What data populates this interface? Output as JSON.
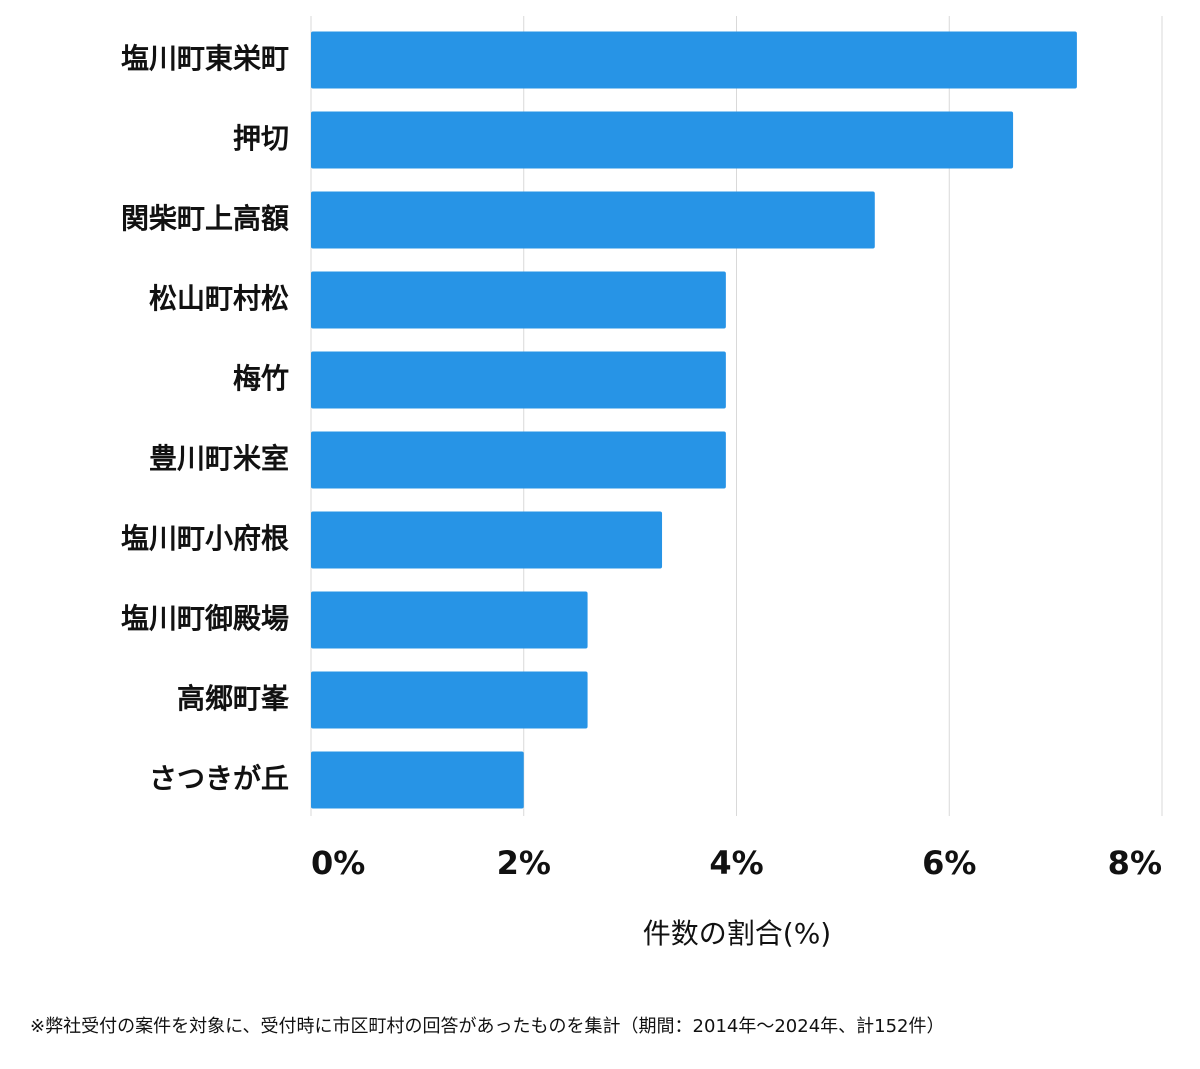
{
  "chart_data": {
    "type": "bar",
    "orientation": "horizontal",
    "categories": [
      "塩川町東栄町",
      "押切",
      "関柴町上高額",
      "松山町村松",
      "梅竹",
      "豊川町米室",
      "塩川町小府根",
      "塩川町御殿場",
      "高郷町峯",
      "さつきが丘"
    ],
    "values": [
      7.2,
      6.6,
      5.3,
      3.9,
      3.9,
      3.9,
      3.3,
      2.6,
      2.6,
      2.0
    ],
    "color": "#2794e6",
    "xlim": [
      0,
      8
    ],
    "xticks": [
      {
        "value": 0,
        "label": "0%"
      },
      {
        "value": 2,
        "label": "2%"
      },
      {
        "value": 4,
        "label": "4%"
      },
      {
        "value": 6,
        "label": "6%"
      },
      {
        "value": 8,
        "label": "8%"
      }
    ],
    "grid": true,
    "x_label": "件数の割合(%)",
    "footnote": "※弊社受付の案件を対象に、受付時に市区町村の回答があったものを集計（期間：2014年〜2024年、計152件）"
  }
}
